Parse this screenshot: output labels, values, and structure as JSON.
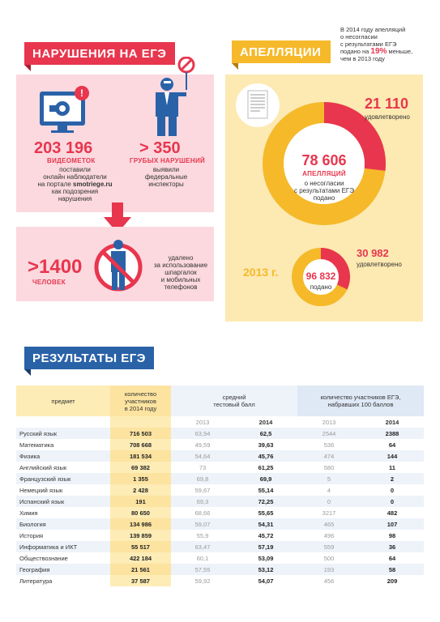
{
  "violations": {
    "title": "НАРУШЕНИЯ НА ЕГЭ",
    "video": {
      "number": "203 196",
      "unit": "ВИДЕОМЕТОК",
      "text": [
        "поставили",
        "онлайн наблюдатели",
        "на портале",
        "smotriege.ru",
        "как подозрения",
        "нарушения"
      ]
    },
    "gross": {
      "number": "> 350",
      "unit": "ГРУБЫХ НАРУШЕНИЙ",
      "text": [
        "выявили",
        "федеральные",
        "инспекторы"
      ]
    },
    "people": {
      "number": ">1400",
      "unit": "ЧЕЛОВЕК",
      "text": [
        "удалено",
        "за использование",
        "шпаргалок",
        "и мобильных",
        "телефонов"
      ]
    }
  },
  "appeals": {
    "title": "АПЕЛЛЯЦИИ",
    "note": [
      "В 2014 году апелляций",
      "о несогласии",
      "с результатами ЕГЭ",
      "подано на",
      "19%",
      "меньше,",
      "чем в 2013 году"
    ],
    "year2014": {
      "total": "78 606",
      "total_unit": "АПЕЛЛЯЦИЙ",
      "total_text": [
        "о несогласии",
        "с результатами ЕГЭ",
        "подано"
      ],
      "satisfied": "21 110",
      "satisfied_label": "удовлетворено"
    },
    "year2013": {
      "label": "2013 г.",
      "total": "96 832",
      "total_label": "подано",
      "satisfied": "30 982",
      "satisfied_label": "удовлетворено"
    },
    "colors": {
      "ring": "#f5b92a",
      "slice": "#e8364e"
    }
  },
  "results": {
    "title": "РЕЗУЛЬТАТЫ ЕГЭ"
  },
  "chart_data": {
    "type": "table",
    "headers": {
      "subject": "предмет",
      "participants": [
        "количество",
        "участников",
        "в 2014 году"
      ],
      "avg": [
        "средний",
        "тестовый балл"
      ],
      "hundred": [
        "количество участников ЕГЭ,",
        "набравших 100 баллов"
      ],
      "y2013": "2013",
      "y2014": "2014"
    },
    "rows": [
      {
        "subject": "Русский язык",
        "participants": "716 503",
        "avg2013": "63,94",
        "avg2014": "62,5",
        "h2013": "2544",
        "h2014": "2388"
      },
      {
        "subject": "Математика",
        "participants": "708 668",
        "avg2013": "49,59",
        "avg2014": "39,63",
        "h2013": "536",
        "h2014": "64"
      },
      {
        "subject": "Физика",
        "participants": "181 534",
        "avg2013": "54,64",
        "avg2014": "45,76",
        "h2013": "474",
        "h2014": "144"
      },
      {
        "subject": "Английский язык",
        "participants": "69 382",
        "avg2013": "73",
        "avg2014": "61,25",
        "h2013": "580",
        "h2014": "11"
      },
      {
        "subject": "Французский язык",
        "participants": "1 355",
        "avg2013": "69,8",
        "avg2014": "69,9",
        "h2013": "5",
        "h2014": "2"
      },
      {
        "subject": "Немецкий язык",
        "participants": "2 428",
        "avg2013": "59,67",
        "avg2014": "55,14",
        "h2013": "4",
        "h2014": "0"
      },
      {
        "subject": "Испанский язык",
        "participants": "191",
        "avg2013": "69,3",
        "avg2014": "72,25",
        "h2013": "0",
        "h2014": "0"
      },
      {
        "subject": "Химия",
        "participants": "80 650",
        "avg2013": "68,66",
        "avg2014": "55,65",
        "h2013": "3217",
        "h2014": "482"
      },
      {
        "subject": "Биология",
        "participants": "134 986",
        "avg2013": "59,07",
        "avg2014": "54,31",
        "h2013": "465",
        "h2014": "107"
      },
      {
        "subject": "История",
        "participants": "139 859",
        "avg2013": "55,9",
        "avg2014": "45,72",
        "h2013": "496",
        "h2014": "98"
      },
      {
        "subject": "Информатика и ИКТ",
        "participants": "55 517",
        "avg2013": "63,47",
        "avg2014": "57,19",
        "h2013": "559",
        "h2014": "36"
      },
      {
        "subject": "Обществознание",
        "participants": "422 184",
        "avg2013": "60,1",
        "avg2014": "53,09",
        "h2013": "500",
        "h2014": "64"
      },
      {
        "subject": "География",
        "participants": "21 561",
        "avg2013": "57,55",
        "avg2014": "53,12",
        "h2013": "193",
        "h2014": "58"
      },
      {
        "subject": "Литература",
        "participants": "37 587",
        "avg2013": "59,92",
        "avg2014": "54,07",
        "h2013": "456",
        "h2014": "209"
      }
    ]
  }
}
